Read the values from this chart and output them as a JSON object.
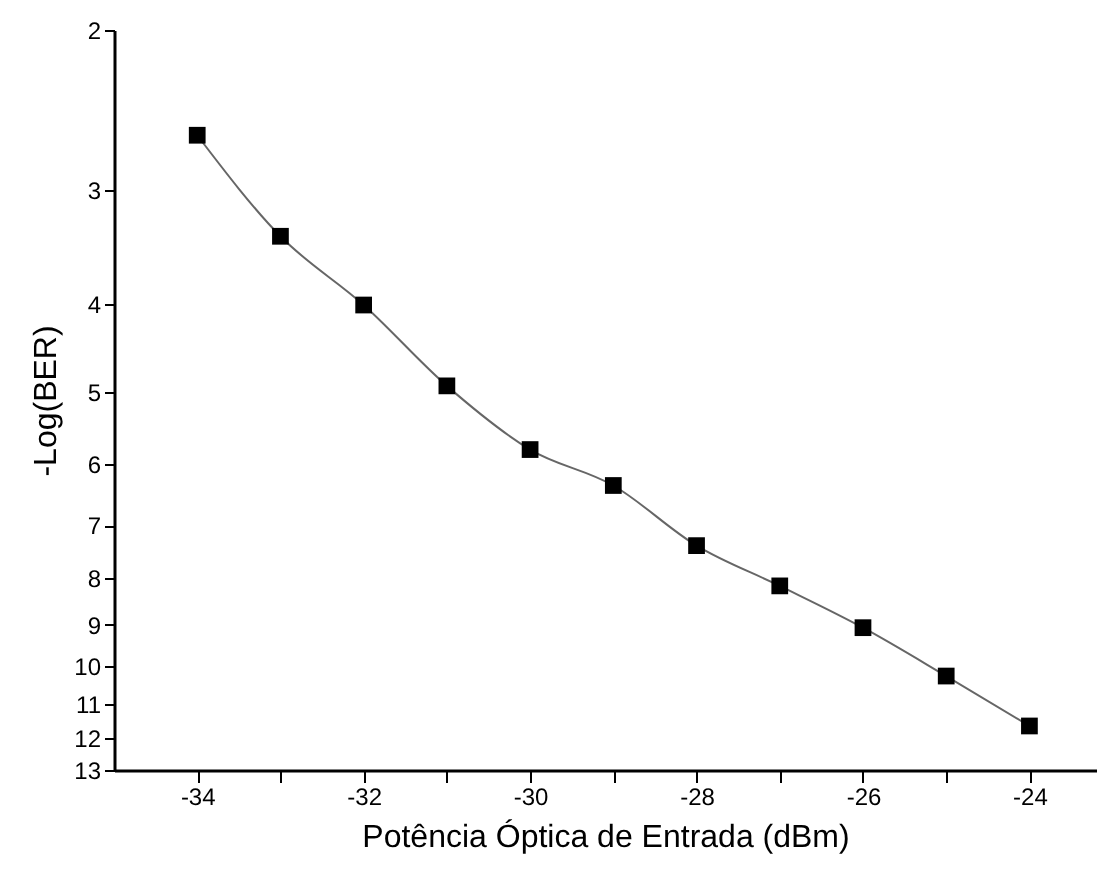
{
  "chart_data": {
    "type": "line",
    "xlabel": "Potência Óptica de Entrada (dBm)",
    "ylabel": "-Log(BER)",
    "x": [
      -34,
      -33,
      -32,
      -31,
      -30,
      -29,
      -28,
      -27,
      -26,
      -25,
      -24
    ],
    "series": [
      {
        "color": "#000000",
        "values": [
          2.61,
          3.37,
          4.01,
          4.92,
          5.78,
          6.33,
          7.37,
          8.16,
          9.07,
          10.25,
          11.63
        ]
      }
    ],
    "xlim": [
      -35,
      -23.2
    ],
    "xticks": [
      -34,
      {
        "value": -33,
        "label": null
      },
      -32,
      {
        "value": -31,
        "label": null
      },
      -30,
      {
        "value": -29,
        "label": null
      },
      -28,
      {
        "value": -27,
        "label": null
      },
      -26,
      {
        "value": -25,
        "label": null
      },
      -24
    ],
    "ylim": [
      13,
      2
    ],
    "yticks": [
      2,
      3,
      4,
      5,
      6,
      7,
      8,
      9,
      10,
      11,
      12,
      13
    ],
    "log": "y",
    "marker": "square",
    "line_style": "solid",
    "grid": false
  }
}
